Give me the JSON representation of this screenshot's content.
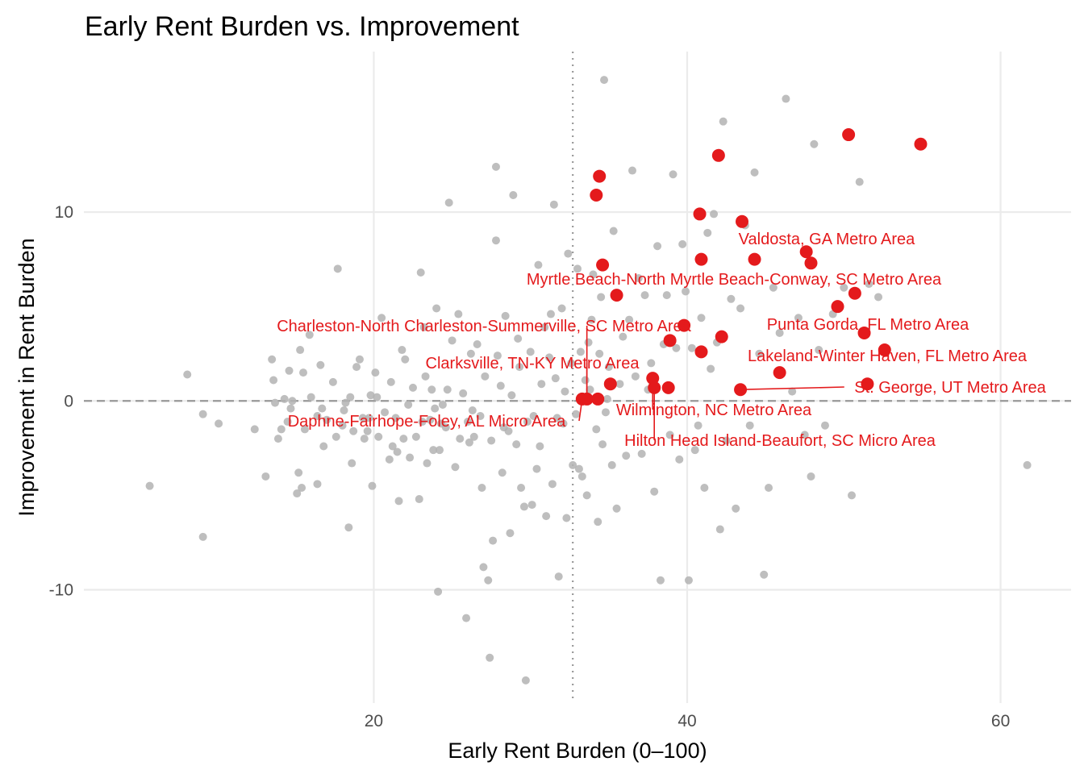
{
  "chart_data": {
    "type": "scatter",
    "title": "Early Rent Burden vs. Improvement",
    "xlabel": "Early Rent Burden (0–100)",
    "ylabel": "Improvement in Rent Burden",
    "xlim": [
      1.5,
      64.5
    ],
    "ylim": [
      -16,
      18.5
    ],
    "x_ticks": [
      20,
      40,
      60
    ],
    "y_ticks": [
      -10,
      0,
      10
    ],
    "x_tick_labels": [
      "20",
      "40",
      "60"
    ],
    "y_tick_labels": [
      "-10",
      "0",
      "10"
    ],
    "reference_lines": {
      "x_dotted": 32.7,
      "y_dashed": 0
    },
    "grid": true,
    "colors": {
      "highlight": "#e41a1c",
      "background_points": "#b3b3b3",
      "gridline": "#ebebeb",
      "reference_line": "#999999"
    },
    "background_points": [
      [
        5.7,
        -4.5
      ],
      [
        8.1,
        1.4
      ],
      [
        9.1,
        -0.7
      ],
      [
        9.1,
        -7.2
      ],
      [
        10.1,
        -1.2
      ],
      [
        12.4,
        -1.5
      ],
      [
        13.1,
        -4.0
      ],
      [
        13.5,
        2.2
      ],
      [
        13.6,
        1.1
      ],
      [
        13.7,
        -0.1
      ],
      [
        14.1,
        -1.5
      ],
      [
        14.3,
        0.1
      ],
      [
        14.5,
        -1.1
      ],
      [
        14.6,
        1.6
      ],
      [
        14.7,
        -0.4
      ],
      [
        14.8,
        0.0
      ],
      [
        15.1,
        -4.9
      ],
      [
        15.2,
        -3.8
      ],
      [
        15.3,
        2.7
      ],
      [
        15.4,
        -4.6
      ],
      [
        15.5,
        1.5
      ],
      [
        15.6,
        -1.5
      ],
      [
        15.9,
        3.5
      ],
      [
        16.0,
        0.2
      ],
      [
        16.4,
        -4.4
      ],
      [
        16.4,
        -0.8
      ],
      [
        16.6,
        1.9
      ],
      [
        16.7,
        -0.4
      ],
      [
        16.8,
        -2.4
      ],
      [
        17.0,
        -1.0
      ],
      [
        17.4,
        1.0
      ],
      [
        17.6,
        -1.9
      ],
      [
        17.7,
        7.0
      ],
      [
        18.0,
        -1.3
      ],
      [
        18.1,
        -0.5
      ],
      [
        18.2,
        -0.1
      ],
      [
        18.4,
        -6.7
      ],
      [
        18.5,
        0.2
      ],
      [
        18.6,
        -3.3
      ],
      [
        18.7,
        -1.6
      ],
      [
        18.9,
        1.8
      ],
      [
        19.1,
        2.2
      ],
      [
        19.3,
        -0.9
      ],
      [
        19.4,
        -2.0
      ],
      [
        19.6,
        -1.6
      ],
      [
        19.8,
        0.3
      ],
      [
        19.9,
        -4.5
      ],
      [
        20.1,
        1.5
      ],
      [
        20.2,
        0.2
      ],
      [
        20.3,
        -1.9
      ],
      [
        20.5,
        4.4
      ],
      [
        20.7,
        -0.6
      ],
      [
        21.0,
        -3.1
      ],
      [
        21.1,
        1.0
      ],
      [
        21.2,
        -2.4
      ],
      [
        21.4,
        -0.9
      ],
      [
        21.5,
        -2.7
      ],
      [
        21.6,
        -5.3
      ],
      [
        21.8,
        2.7
      ],
      [
        22.0,
        2.2
      ],
      [
        22.2,
        -0.2
      ],
      [
        22.3,
        -3.0
      ],
      [
        22.5,
        0.7
      ],
      [
        22.7,
        -1.9
      ],
      [
        22.9,
        -5.2
      ],
      [
        23.0,
        6.8
      ],
      [
        23.1,
        -1.1
      ],
      [
        23.2,
        3.9
      ],
      [
        23.3,
        1.3
      ],
      [
        23.4,
        -3.3
      ],
      [
        23.6,
        -1.0
      ],
      [
        23.7,
        0.6
      ],
      [
        23.8,
        -2.6
      ],
      [
        24.0,
        4.9
      ],
      [
        24.1,
        -10.1
      ],
      [
        24.2,
        -2.6
      ],
      [
        24.3,
        -1.2
      ],
      [
        24.4,
        -0.2
      ],
      [
        24.6,
        -1.4
      ],
      [
        24.7,
        0.6
      ],
      [
        24.8,
        10.5
      ],
      [
        25.0,
        3.2
      ],
      [
        25.2,
        -3.5
      ],
      [
        25.4,
        4.6
      ],
      [
        25.5,
        -2.0
      ],
      [
        25.7,
        0.4
      ],
      [
        25.9,
        -11.5
      ],
      [
        26.0,
        -1.1
      ],
      [
        26.2,
        2.5
      ],
      [
        26.3,
        -0.5
      ],
      [
        26.4,
        -1.9
      ],
      [
        26.6,
        3.0
      ],
      [
        26.8,
        -0.8
      ],
      [
        26.9,
        -4.6
      ],
      [
        27.0,
        -8.8
      ],
      [
        27.1,
        1.3
      ],
      [
        27.3,
        -9.5
      ],
      [
        27.4,
        -13.6
      ],
      [
        27.5,
        -2.1
      ],
      [
        27.6,
        -7.4
      ],
      [
        27.8,
        12.4
      ],
      [
        27.8,
        8.5
      ],
      [
        27.9,
        2.4
      ],
      [
        28.1,
        0.8
      ],
      [
        28.2,
        -3.8
      ],
      [
        28.3,
        -1.4
      ],
      [
        28.4,
        4.5
      ],
      [
        28.6,
        -1.6
      ],
      [
        28.7,
        -7.0
      ],
      [
        28.8,
        0.3
      ],
      [
        28.9,
        10.9
      ],
      [
        29.1,
        -2.3
      ],
      [
        29.2,
        3.3
      ],
      [
        29.3,
        1.8
      ],
      [
        29.4,
        -4.6
      ],
      [
        29.6,
        -5.6
      ],
      [
        29.7,
        -14.8
      ],
      [
        29.8,
        -1.1
      ],
      [
        30.0,
        2.6
      ],
      [
        30.1,
        -5.5
      ],
      [
        30.2,
        -0.8
      ],
      [
        30.4,
        -3.6
      ],
      [
        30.5,
        7.2
      ],
      [
        30.6,
        -2.4
      ],
      [
        30.7,
        0.9
      ],
      [
        30.9,
        3.9
      ],
      [
        31.0,
        -6.1
      ],
      [
        31.2,
        2.3
      ],
      [
        31.3,
        4.6
      ],
      [
        31.4,
        -4.4
      ],
      [
        31.5,
        10.4
      ],
      [
        31.6,
        1.2
      ],
      [
        31.7,
        -0.9
      ],
      [
        31.8,
        -9.3
      ],
      [
        32.0,
        4.9
      ],
      [
        32.1,
        -1.2
      ],
      [
        32.2,
        0.5
      ],
      [
        32.3,
        -6.2
      ],
      [
        32.4,
        7.8
      ],
      [
        32.6,
        2.0
      ],
      [
        32.7,
        -3.4
      ],
      [
        32.9,
        -0.7
      ],
      [
        33.0,
        7.0
      ],
      [
        33.1,
        -3.6
      ],
      [
        33.2,
        2.6
      ],
      [
        33.3,
        -4.0
      ],
      [
        33.5,
        1.1
      ],
      [
        33.6,
        -5.0
      ],
      [
        33.7,
        3.1
      ],
      [
        33.8,
        0.6
      ],
      [
        33.9,
        4.3
      ],
      [
        34.0,
        6.7
      ],
      [
        34.2,
        -1.5
      ],
      [
        34.3,
        -6.4
      ],
      [
        34.4,
        2.5
      ],
      [
        34.5,
        5.5
      ],
      [
        34.6,
        -2.3
      ],
      [
        34.7,
        17.0
      ],
      [
        34.8,
        -0.6
      ],
      [
        34.9,
        0.1
      ],
      [
        35.0,
        1.8
      ],
      [
        35.2,
        -3.4
      ],
      [
        35.3,
        9.0
      ],
      [
        35.5,
        -5.7
      ],
      [
        35.7,
        0.9
      ],
      [
        35.9,
        3.4
      ],
      [
        36.1,
        -2.9
      ],
      [
        36.3,
        4.3
      ],
      [
        36.5,
        12.2
      ],
      [
        36.7,
        1.3
      ],
      [
        36.9,
        6.5
      ],
      [
        37.1,
        -2.8
      ],
      [
        37.3,
        5.6
      ],
      [
        37.5,
        0.6
      ],
      [
        37.7,
        2.0
      ],
      [
        37.9,
        -4.8
      ],
      [
        38.1,
        8.2
      ],
      [
        38.3,
        -9.5
      ],
      [
        38.5,
        3.0
      ],
      [
        38.7,
        5.6
      ],
      [
        38.9,
        -1.8
      ],
      [
        39.1,
        12.0
      ],
      [
        39.3,
        2.8
      ],
      [
        39.5,
        -3.1
      ],
      [
        39.7,
        8.3
      ],
      [
        39.9,
        5.8
      ],
      [
        40.1,
        -9.5
      ],
      [
        40.3,
        2.8
      ],
      [
        40.5,
        -2.6
      ],
      [
        40.7,
        -1.3
      ],
      [
        40.9,
        4.4
      ],
      [
        41.1,
        -4.6
      ],
      [
        41.3,
        8.9
      ],
      [
        41.5,
        1.7
      ],
      [
        41.7,
        9.9
      ],
      [
        41.9,
        3.1
      ],
      [
        42.1,
        -6.8
      ],
      [
        42.3,
        14.8
      ],
      [
        42.5,
        -2.1
      ],
      [
        42.8,
        5.4
      ],
      [
        43.1,
        -5.7
      ],
      [
        43.4,
        4.9
      ],
      [
        43.7,
        9.3
      ],
      [
        44.0,
        -1.3
      ],
      [
        44.3,
        12.1
      ],
      [
        44.6,
        2.5
      ],
      [
        44.9,
        -9.2
      ],
      [
        45.2,
        -4.6
      ],
      [
        45.5,
        6.0
      ],
      [
        45.9,
        3.6
      ],
      [
        46.3,
        16.0
      ],
      [
        46.7,
        0.5
      ],
      [
        47.1,
        4.4
      ],
      [
        47.5,
        -1.8
      ],
      [
        47.9,
        -4.0
      ],
      [
        48.1,
        13.6
      ],
      [
        48.4,
        2.7
      ],
      [
        48.8,
        -1.3
      ],
      [
        49.3,
        4.6
      ],
      [
        50.0,
        6.0
      ],
      [
        50.5,
        -5.0
      ],
      [
        51.0,
        11.6
      ],
      [
        51.6,
        6.2
      ],
      [
        52.2,
        5.5
      ],
      [
        61.7,
        -3.4
      ],
      [
        13.9,
        -2.0
      ],
      [
        19.7,
        -0.9
      ],
      [
        21.9,
        -2.0
      ],
      [
        23.9,
        -0.4
      ],
      [
        26.1,
        -2.2
      ]
    ],
    "highlighted_points": [
      [
        33.3,
        0.1
      ],
      [
        33.6,
        0.1
      ],
      [
        34.3,
        0.1
      ],
      [
        34.2,
        10.9
      ],
      [
        34.4,
        11.9
      ],
      [
        34.6,
        7.2
      ],
      [
        35.1,
        0.9
      ],
      [
        35.5,
        5.6
      ],
      [
        37.8,
        1.2
      ],
      [
        37.9,
        0.7
      ],
      [
        38.8,
        0.7
      ],
      [
        38.9,
        3.2
      ],
      [
        39.8,
        4.0
      ],
      [
        40.8,
        9.9
      ],
      [
        40.9,
        7.5
      ],
      [
        40.9,
        2.6
      ],
      [
        42.0,
        13.0
      ],
      [
        42.2,
        3.4
      ],
      [
        43.4,
        0.6
      ],
      [
        43.5,
        9.5
      ],
      [
        44.3,
        7.5
      ],
      [
        45.9,
        1.5
      ],
      [
        47.6,
        7.9
      ],
      [
        47.9,
        7.3
      ],
      [
        49.6,
        5.0
      ],
      [
        50.3,
        14.1
      ],
      [
        50.7,
        5.7
      ],
      [
        51.3,
        3.6
      ],
      [
        51.5,
        0.9
      ],
      [
        52.6,
        2.7
      ],
      [
        54.9,
        13.6
      ]
    ],
    "labels": [
      {
        "text": "Valdosta, GA Metro Area",
        "x": 43.5,
        "y": 9.5
      },
      {
        "text": "Myrtle Beach-North Myrtle Beach-Conway, SC Metro Area",
        "x": 34.6,
        "y": 7.2
      },
      {
        "text": "Punta Gorda, FL Metro Area",
        "x": 49.6,
        "y": 5.0
      },
      {
        "text": "Charleston-North Charleston-Summerville, SC Metro Area",
        "x": 33.6,
        "y": 0.1
      },
      {
        "text": "Lakeland-Winter Haven, FL Metro Area",
        "x": 52.6,
        "y": 2.7
      },
      {
        "text": "Clarksville, TN-KY Metro Area",
        "x": 33.6,
        "y": 0.1
      },
      {
        "text": "St. George, UT Metro Area",
        "x": 43.4,
        "y": 0.6
      },
      {
        "text": "Wilmington, NC Metro Area",
        "x": 37.8,
        "y": 1.2
      },
      {
        "text": "Daphne-Fairhope-Foley, AL Micro Area",
        "x": 33.3,
        "y": 0.1
      },
      {
        "text": "Hilton Head Island-Beaufort, SC Micro Area",
        "x": 37.9,
        "y": 0.7
      }
    ]
  }
}
